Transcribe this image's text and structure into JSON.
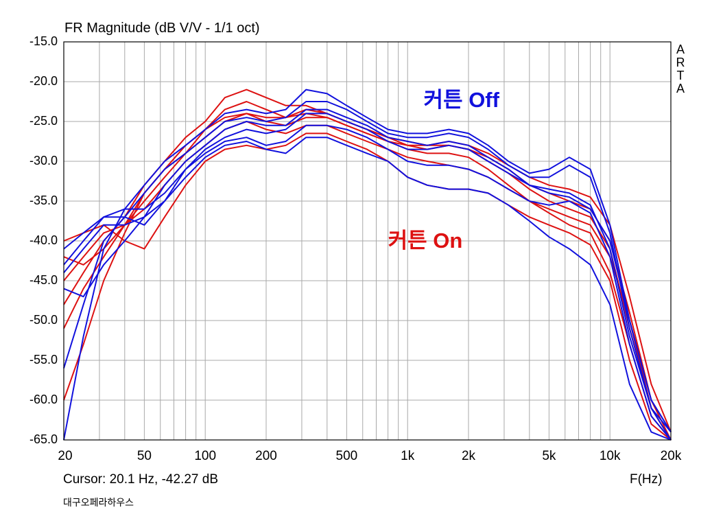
{
  "chart_title": "FR Magnitude (dB V/V - 1/1 oct)",
  "side_brand_letters": [
    "A",
    "R",
    "T",
    "A"
  ],
  "cursor_readout": "Cursor: 20.1 Hz, -42.27 dB",
  "watermark": "대구오페라하우스",
  "colors": {
    "curtain_on": "#dd1111",
    "curtain_off": "#1111dd",
    "grid": "#a8a8a8",
    "frame": "#000000"
  },
  "chart_data": {
    "type": "line",
    "x_scale": "log",
    "xlim": [
      20,
      20000
    ],
    "ylim": [
      -65,
      -15
    ],
    "xlabel": "F(Hz)",
    "ylabel": "",
    "grid": true,
    "x_tick_values": [
      20,
      50,
      100,
      200,
      500,
      1000,
      2000,
      5000,
      10000,
      20000
    ],
    "x_tick_labels": [
      "20",
      "50",
      "100",
      "200",
      "500",
      "1k",
      "2k",
      "5k",
      "10k",
      "20k"
    ],
    "y_tick_labels": [
      "-15.0",
      "-20.0",
      "-25.0",
      "-30.0",
      "-35.0",
      "-40.0",
      "-45.0",
      "-50.0",
      "-55.0",
      "-60.0",
      "-65.0"
    ],
    "annotations": [
      {
        "text": "커튼 Off",
        "color": "#1111dd",
        "freq": 1200,
        "db": -21.8
      },
      {
        "text": "커튼 On",
        "color": "#dd1111",
        "freq": 800,
        "db": -39.5
      }
    ],
    "series": [
      {
        "group": "on",
        "color": "#dd1111",
        "x": [
          20,
          25,
          31.5,
          40,
          50,
          63,
          80,
          100,
          125,
          160,
          200,
          250,
          315,
          400,
          500,
          630,
          800,
          1000,
          1250,
          1600,
          2000,
          2500,
          3150,
          4000,
          5000,
          6300,
          8000,
          10000,
          12500,
          16000,
          20000
        ],
        "y": [
          -48,
          -44,
          -40,
          -37,
          -33,
          -30,
          -27,
          -25,
          -22,
          -21,
          -22,
          -23,
          -23,
          -24,
          -25,
          -26,
          -27,
          -28,
          -28.5,
          -28,
          -28.5,
          -29.5,
          -31,
          -33,
          -34,
          -35,
          -36,
          -40,
          -49,
          -60,
          -65
        ]
      },
      {
        "group": "on",
        "color": "#dd1111",
        "x": [
          20,
          25,
          31.5,
          40,
          50,
          63,
          80,
          100,
          125,
          160,
          200,
          250,
          315,
          400,
          500,
          630,
          800,
          1000,
          1250,
          1600,
          2000,
          2500,
          3150,
          4000,
          5000,
          6300,
          8000,
          10000,
          12500,
          16000,
          20000
        ],
        "y": [
          -51,
          -46,
          -42,
          -38,
          -35,
          -32,
          -29,
          -26,
          -23.5,
          -22.5,
          -23.5,
          -24.5,
          -24,
          -24.5,
          -25.5,
          -26.5,
          -27.5,
          -28.5,
          -29,
          -29,
          -29.5,
          -31,
          -33,
          -35,
          -36.5,
          -38,
          -39,
          -44,
          -53,
          -62,
          -65
        ]
      },
      {
        "group": "on",
        "color": "#dd1111",
        "x": [
          20,
          25,
          31.5,
          40,
          50,
          63,
          80,
          100,
          125,
          160,
          200,
          250,
          315,
          400,
          500,
          630,
          800,
          1000,
          1250,
          1600,
          2000,
          2500,
          3150,
          4000,
          5000,
          6300,
          8000,
          10000,
          12500,
          16000,
          20000
        ],
        "y": [
          -45,
          -42,
          -39,
          -38,
          -36,
          -33,
          -30,
          -28,
          -26,
          -25,
          -26,
          -26.5,
          -25.5,
          -25.5,
          -26.5,
          -27.5,
          -28.5,
          -29.5,
          -30,
          -30.5,
          -31,
          -32,
          -33.5,
          -35,
          -36,
          -37,
          -38,
          -42,
          -50,
          -61,
          -65
        ]
      },
      {
        "group": "on",
        "color": "#dd1111",
        "x": [
          20,
          25,
          31.5,
          40,
          50,
          63,
          80,
          100,
          125,
          160,
          200,
          250,
          315,
          400,
          500,
          630,
          800,
          1000,
          1250,
          1600,
          2000,
          2500,
          3150,
          4000,
          5000,
          6300,
          8000,
          10000,
          12500,
          16000,
          20000
        ],
        "y": [
          -40,
          -39,
          -38,
          -40,
          -41,
          -37,
          -33,
          -30,
          -28.5,
          -28,
          -28.5,
          -28,
          -26.5,
          -26.5,
          -27.5,
          -28.5,
          -30,
          -32,
          -33,
          -33.5,
          -33.5,
          -34,
          -35.5,
          -37,
          -38,
          -39,
          -40.5,
          -45,
          -55,
          -63,
          -65
        ]
      },
      {
        "group": "on",
        "color": "#dd1111",
        "x": [
          20,
          25,
          31.5,
          40,
          50,
          63,
          80,
          100,
          125,
          160,
          200,
          250,
          315,
          400,
          500,
          630,
          800,
          1000,
          1250,
          1600,
          2000,
          2500,
          3150,
          4000,
          5000,
          6300,
          8000,
          10000,
          12500,
          16000,
          20000
        ],
        "y": [
          -60,
          -53,
          -45,
          -39,
          -34,
          -31,
          -29,
          -27,
          -25,
          -24,
          -25,
          -25.5,
          -24.5,
          -24.5,
          -25.5,
          -26.5,
          -27.5,
          -28,
          -28,
          -27.5,
          -28,
          -29,
          -30.5,
          -32,
          -33,
          -33.5,
          -34.5,
          -38,
          -47,
          -58,
          -64
        ]
      },
      {
        "group": "on",
        "color": "#dd1111",
        "x": [
          20,
          25,
          31.5,
          40,
          50,
          63,
          80,
          100,
          125,
          160,
          200,
          250,
          315,
          400,
          500,
          630,
          800,
          1000,
          1250,
          1600,
          2000,
          2500,
          3150,
          4000,
          5000,
          6300,
          8000,
          10000,
          12500,
          16000,
          20000
        ],
        "y": [
          -42,
          -43,
          -41,
          -38,
          -34,
          -31,
          -28,
          -26,
          -24.5,
          -24,
          -24.5,
          -24.5,
          -23.5,
          -24,
          -25,
          -26,
          -27,
          -27.5,
          -28,
          -28,
          -28.5,
          -30,
          -31.5,
          -33.5,
          -35,
          -36,
          -37,
          -41,
          -51,
          -61,
          -65
        ]
      },
      {
        "group": "off",
        "color": "#1111dd",
        "x": [
          20,
          25,
          31.5,
          40,
          50,
          63,
          80,
          100,
          125,
          160,
          200,
          250,
          315,
          400,
          500,
          630,
          800,
          1000,
          1250,
          1600,
          2000,
          2500,
          3150,
          4000,
          5000,
          6300,
          8000,
          10000,
          12500,
          16000,
          20000
        ],
        "y": [
          -65,
          -52,
          -41,
          -36,
          -33,
          -30,
          -28,
          -26,
          -24,
          -23.5,
          -24,
          -23.5,
          -21,
          -21.5,
          -23,
          -24.5,
          -26,
          -26.5,
          -26.5,
          -26,
          -26.5,
          -28,
          -30,
          -31.5,
          -31,
          -29.5,
          -31,
          -38,
          -50,
          -60,
          -64
        ]
      },
      {
        "group": "off",
        "color": "#1111dd",
        "x": [
          20,
          25,
          31.5,
          40,
          50,
          63,
          80,
          100,
          125,
          160,
          200,
          250,
          315,
          400,
          500,
          630,
          800,
          1000,
          1250,
          1600,
          2000,
          2500,
          3150,
          4000,
          5000,
          6300,
          8000,
          10000,
          12500,
          16000,
          20000
        ],
        "y": [
          -56,
          -48,
          -40,
          -37,
          -34,
          -31,
          -29,
          -27,
          -25,
          -24.5,
          -25,
          -24.5,
          -22.5,
          -22.5,
          -23.5,
          -25,
          -26.5,
          -27,
          -27,
          -26.5,
          -27,
          -28.5,
          -30.5,
          -32,
          -32,
          -30.5,
          -32,
          -39,
          -51,
          -61,
          -64
        ]
      },
      {
        "group": "off",
        "color": "#1111dd",
        "x": [
          20,
          25,
          31.5,
          40,
          50,
          63,
          80,
          100,
          125,
          160,
          200,
          250,
          315,
          400,
          500,
          630,
          800,
          1000,
          1250,
          1600,
          2000,
          2500,
          3150,
          4000,
          5000,
          6300,
          8000,
          10000,
          12500,
          16000,
          20000
        ],
        "y": [
          -43,
          -40,
          -37,
          -37,
          -38,
          -35,
          -31,
          -29,
          -27.5,
          -27,
          -28,
          -27.5,
          -25.5,
          -25.5,
          -26,
          -27,
          -28.5,
          -30,
          -30.5,
          -30.5,
          -31,
          -32,
          -33.5,
          -35,
          -35.5,
          -35,
          -36.5,
          -42,
          -53,
          -62,
          -65
        ]
      },
      {
        "group": "off",
        "color": "#1111dd",
        "x": [
          20,
          25,
          31.5,
          40,
          50,
          63,
          80,
          100,
          125,
          160,
          200,
          250,
          315,
          400,
          500,
          630,
          800,
          1000,
          1250,
          1600,
          2000,
          2500,
          3150,
          4000,
          5000,
          6300,
          8000,
          10000,
          12500,
          16000,
          20000
        ],
        "y": [
          -41,
          -39,
          -37,
          -36,
          -36,
          -34,
          -31,
          -28.5,
          -27,
          -26,
          -26.5,
          -26,
          -24,
          -24,
          -25,
          -26,
          -27.5,
          -28.5,
          -28.5,
          -28,
          -28.5,
          -30,
          -31.5,
          -33,
          -33.5,
          -34,
          -35.5,
          -41,
          -52,
          -61,
          -65
        ]
      },
      {
        "group": "off",
        "color": "#1111dd",
        "x": [
          20,
          25,
          31.5,
          40,
          50,
          63,
          80,
          100,
          125,
          160,
          200,
          250,
          315,
          400,
          500,
          630,
          800,
          1000,
          1250,
          1600,
          2000,
          2500,
          3150,
          4000,
          5000,
          6300,
          8000,
          10000,
          12500,
          16000,
          20000
        ],
        "y": [
          -44,
          -41,
          -38,
          -38,
          -37,
          -35,
          -32,
          -29.5,
          -28,
          -27.5,
          -28.5,
          -29,
          -27,
          -27,
          -28,
          -29,
          -30,
          -32,
          -33,
          -33.5,
          -33.5,
          -34,
          -35.5,
          -37.5,
          -39.5,
          -41,
          -43,
          -48,
          -58,
          -64,
          -65
        ]
      },
      {
        "group": "off",
        "color": "#1111dd",
        "x": [
          20,
          25,
          31.5,
          40,
          50,
          63,
          80,
          100,
          125,
          160,
          200,
          250,
          315,
          400,
          500,
          630,
          800,
          1000,
          1250,
          1600,
          2000,
          2500,
          3150,
          4000,
          5000,
          6300,
          8000,
          10000,
          12500,
          16000,
          20000
        ],
        "y": [
          -46,
          -47,
          -43,
          -40,
          -37,
          -33,
          -30,
          -28,
          -26,
          -25,
          -25.5,
          -25.5,
          -23.5,
          -23.5,
          -24.5,
          -25.5,
          -27,
          -27.5,
          -28,
          -27.5,
          -28,
          -29.5,
          -31,
          -33,
          -34,
          -34.5,
          -36,
          -40,
          -50,
          -60,
          -64
        ]
      }
    ]
  }
}
